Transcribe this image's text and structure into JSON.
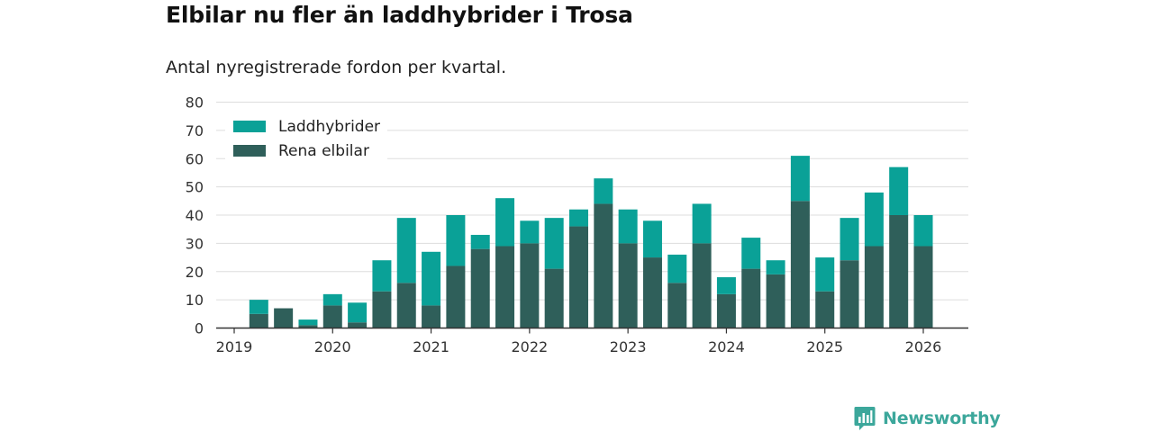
{
  "header": {
    "title": "Elbilar nu fler än laddhybrider i Trosa",
    "subtitle": "Antal nyregistrerade fordon per kvartal."
  },
  "brand": {
    "name": "Newsworthy",
    "icon": "newsworthy-logo-icon"
  },
  "colors": {
    "laddhybrider": "#0aa197",
    "rena_elbilar": "#2f5f5a",
    "grid": "#dddddd",
    "axis": "#333333",
    "brand": "#3ca79b"
  },
  "chart_data": {
    "type": "bar",
    "stacked": true,
    "title": "Elbilar nu fler än laddhybrider i Trosa",
    "subtitle": "Antal nyregistrerade fordon per kvartal.",
    "xlabel": "",
    "ylabel": "",
    "ylim": [
      0,
      80
    ],
    "yticks": [
      0,
      10,
      20,
      30,
      40,
      50,
      60,
      70,
      80
    ],
    "x_tick_labels": [
      "2019",
      "2020",
      "2021",
      "2022",
      "2023",
      "2024",
      "2025",
      "2026"
    ],
    "x_domain": [
      2019,
      2026.25
    ],
    "grid": true,
    "legend_position": "top-left",
    "categories": [
      "2019 Q2",
      "2019 Q3",
      "2019 Q4",
      "2020 Q1",
      "2020 Q2",
      "2020 Q3",
      "2020 Q4",
      "2021 Q1",
      "2021 Q2",
      "2021 Q3",
      "2021 Q4",
      "2022 Q1",
      "2022 Q2",
      "2022 Q3",
      "2022 Q4",
      "2023 Q1",
      "2023 Q2",
      "2023 Q3",
      "2023 Q4",
      "2024 Q1",
      "2024 Q2",
      "2024 Q3",
      "2024 Q4",
      "2025 Q1",
      "2025 Q2",
      "2025 Q3",
      "2025 Q4",
      "2026 Q1"
    ],
    "x_positions": [
      2019.25,
      2019.5,
      2019.75,
      2020.0,
      2020.25,
      2020.5,
      2020.75,
      2021.0,
      2021.25,
      2021.5,
      2021.75,
      2022.0,
      2022.25,
      2022.5,
      2022.75,
      2023.0,
      2023.25,
      2023.5,
      2023.75,
      2024.0,
      2024.25,
      2024.5,
      2024.75,
      2025.0,
      2025.25,
      2025.5,
      2025.75,
      2026.0
    ],
    "series": [
      {
        "name": "Rena elbilar",
        "color_key": "rena_elbilar",
        "values": [
          5,
          7,
          1,
          8,
          2,
          13,
          16,
          8,
          22,
          28,
          29,
          30,
          21,
          36,
          44,
          30,
          25,
          16,
          30,
          12,
          21,
          19,
          45,
          13,
          24,
          29,
          40,
          29
        ]
      },
      {
        "name": "Laddhybrider",
        "color_key": "laddhybrider",
        "values": [
          5,
          0,
          2,
          4,
          7,
          11,
          23,
          19,
          18,
          5,
          17,
          8,
          18,
          6,
          9,
          12,
          13,
          10,
          14,
          6,
          11,
          5,
          16,
          12,
          15,
          19,
          17,
          11
        ]
      }
    ],
    "legend": [
      {
        "label": "Laddhybrider",
        "color_key": "laddhybrider"
      },
      {
        "label": "Rena elbilar",
        "color_key": "rena_elbilar"
      }
    ]
  }
}
